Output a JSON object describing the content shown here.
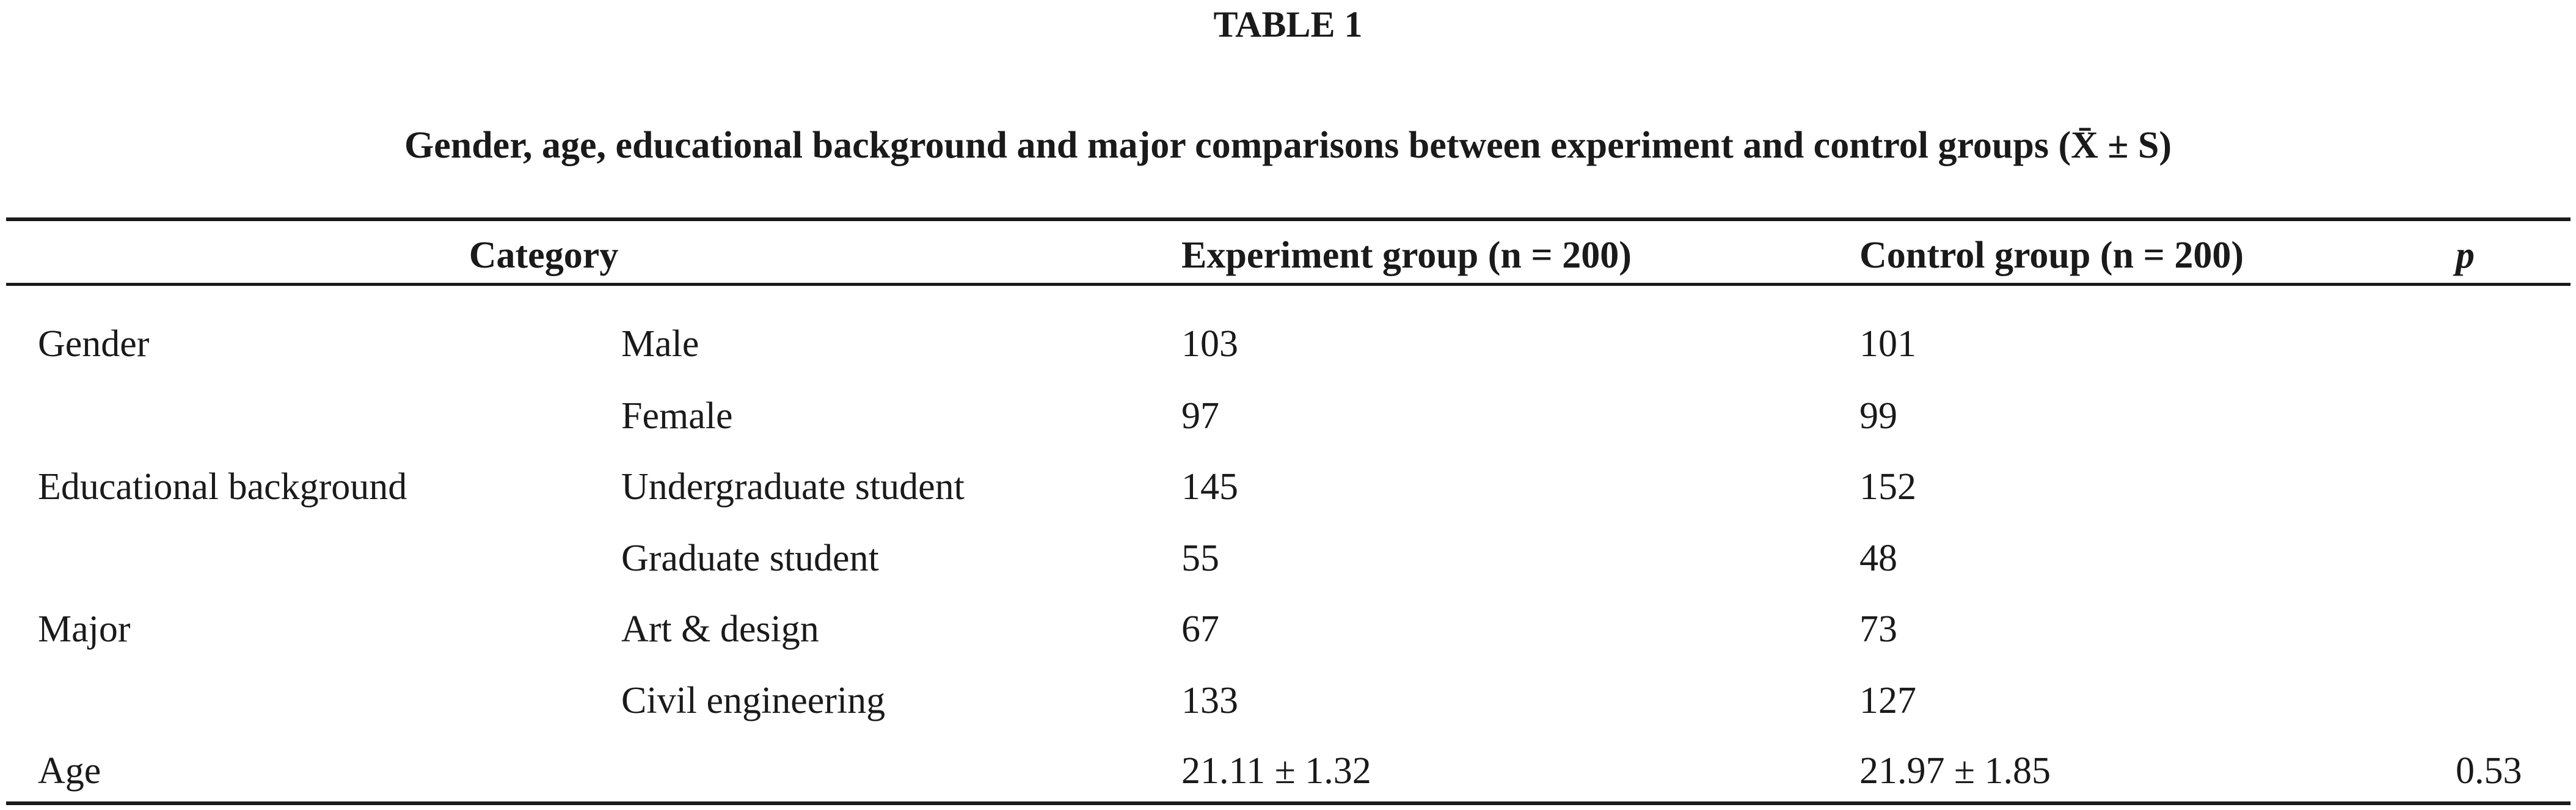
{
  "table": {
    "label": "TABLE 1",
    "title": "Gender, age, educational background and major comparisons between experiment and control groups (X̄ ± S)",
    "headers": {
      "category": "Category",
      "experiment": "Experiment group (n = 200)",
      "control": "Control group (n = 200)",
      "p": "p"
    },
    "rows": [
      {
        "category": "Gender",
        "sub": "Male",
        "experiment": "103",
        "control": "101",
        "p": ""
      },
      {
        "category": "",
        "sub": "Female",
        "experiment": "97",
        "control": "99",
        "p": ""
      },
      {
        "category": "Educational background",
        "sub": "Undergraduate student",
        "experiment": "145",
        "control": "152",
        "p": ""
      },
      {
        "category": "",
        "sub": "Graduate student",
        "experiment": "55",
        "control": "48",
        "p": ""
      },
      {
        "category": "Major",
        "sub": "Art & design",
        "experiment": "67",
        "control": "73",
        "p": ""
      },
      {
        "category": "",
        "sub": "Civil engineering",
        "experiment": "133",
        "control": "127",
        "p": ""
      },
      {
        "category": "Age",
        "sub": "",
        "experiment": "21.11 ± 1.32",
        "control": "21.97 ± 1.85",
        "p": "0.53"
      }
    ]
  }
}
